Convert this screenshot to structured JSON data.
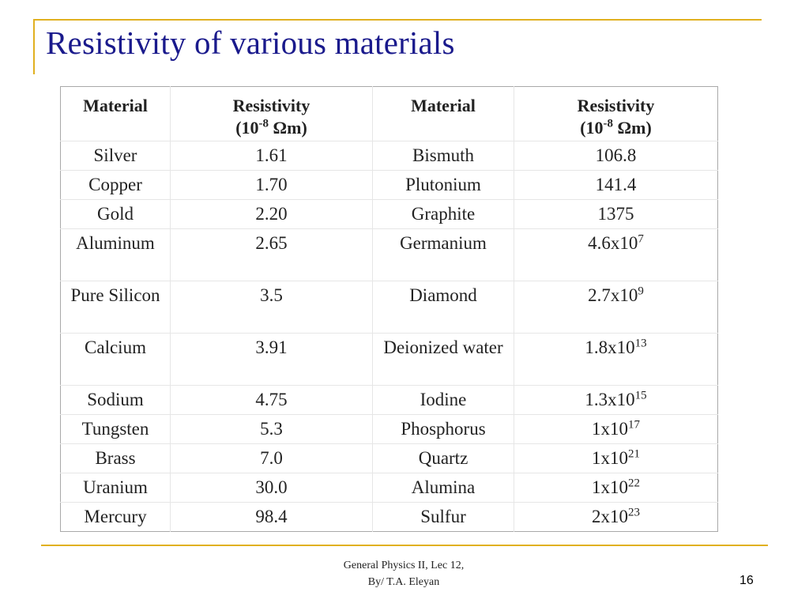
{
  "slide": {
    "title": "Resistivity of various materials",
    "footer_line1": "General Physics II, Lec 12,",
    "footer_line2": "By/ T.A. Eleyan",
    "page_number": "16",
    "accent_color": "#e0b020",
    "title_color": "#1a1a8c"
  },
  "table": {
    "headers": {
      "material": "Material",
      "resistivity": "Resistivity",
      "unit_prefix": "(10",
      "unit_exp": "-8",
      "unit_suffix": " Ωm)"
    },
    "rows": [
      {
        "m1": "Silver",
        "r1": "1.61",
        "m2": "Bismuth",
        "r2_base": "106.8",
        "r2_exp": ""
      },
      {
        "m1": "Copper",
        "r1": "1.70",
        "m2": "Plutonium",
        "r2_base": "141.4",
        "r2_exp": ""
      },
      {
        "m1": "Gold",
        "r1": "2.20",
        "m2": "Graphite",
        "r2_base": "1375",
        "r2_exp": ""
      },
      {
        "m1": "Aluminum",
        "r1": "2.65",
        "m2": "Germanium",
        "r2_base": "4.6x10",
        "r2_exp": "7"
      },
      {
        "m1": "Pure Silicon",
        "r1": "3.5",
        "m2": "Diamond",
        "r2_base": "2.7x10",
        "r2_exp": "9"
      },
      {
        "m1": "Calcium",
        "r1": "3.91",
        "m2": "Deionized water",
        "r2_base": "1.8x10",
        "r2_exp": "13"
      },
      {
        "m1": "Sodium",
        "r1": "4.75",
        "m2": "Iodine",
        "r2_base": "1.3x10",
        "r2_exp": "15"
      },
      {
        "m1": "Tungsten",
        "r1": "5.3",
        "m2": "Phosphorus",
        "r2_base": "1x10",
        "r2_exp": "17"
      },
      {
        "m1": "Brass",
        "r1": "7.0",
        "m2": "Quartz",
        "r2_base": "1x10",
        "r2_exp": "21"
      },
      {
        "m1": "Uranium",
        "r1": "30.0",
        "m2": "Alumina",
        "r2_base": "1x10",
        "r2_exp": "22"
      },
      {
        "m1": "Mercury",
        "r1": "98.4",
        "m2": "Sulfur",
        "r2_base": "2x10",
        "r2_exp": "23"
      }
    ]
  }
}
